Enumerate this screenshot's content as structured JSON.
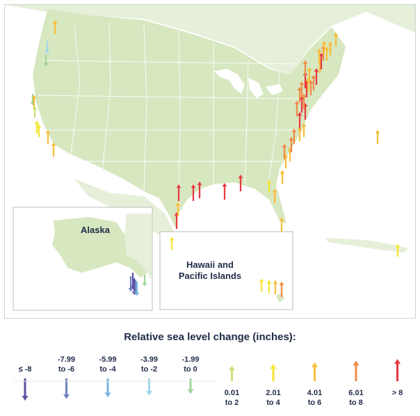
{
  "colors": {
    "land": "#d7e7c0",
    "land_light": "#e6efd9",
    "water": "#ffffff",
    "border": "#ffffff",
    "inset_border": "#b9bfbb",
    "text": "#1e2a46"
  },
  "map": {
    "insets": {
      "alaska_label": "Alaska",
      "hawaii_label_line1": "Hawaii and",
      "hawaii_label_line2": "Pacific Islands"
    }
  },
  "categories": [
    {
      "id": "c1",
      "line1": "≤ -8",
      "line2": "",
      "color": "#5b4fa3",
      "dir": "down",
      "size": 1.0
    },
    {
      "id": "c2",
      "line1": "-7.99",
      "line2": "to -6",
      "color": "#6f84bf",
      "dir": "down",
      "size": 0.85
    },
    {
      "id": "c3",
      "line1": "-5.99",
      "line2": "to -4",
      "color": "#78b6df",
      "dir": "down",
      "size": 0.7
    },
    {
      "id": "c4",
      "line1": "-3.99",
      "line2": "to -2",
      "color": "#9fd9ea",
      "dir": "down",
      "size": 0.55
    },
    {
      "id": "c5",
      "line1": "-1.99",
      "line2": "to 0",
      "color": "#9fd49a",
      "dir": "down",
      "size": 0.4
    },
    {
      "id": "c6",
      "line1": "0.01",
      "line2": "to 2",
      "color": "#cde07c",
      "dir": "up",
      "size": 0.4
    },
    {
      "id": "c7",
      "line1": "2.01",
      "line2": "to 4",
      "color": "#f6e533",
      "dir": "up",
      "size": 0.55
    },
    {
      "id": "c8",
      "line1": "4.01",
      "line2": "to 6",
      "color": "#f8be3a",
      "dir": "up",
      "size": 0.7
    },
    {
      "id": "c9",
      "line1": "6.01",
      "line2": "to 8",
      "color": "#f08a47",
      "dir": "up",
      "size": 0.85
    },
    {
      "id": "c10",
      "line1": "> 8",
      "line2": "",
      "color": "#e5383f",
      "dir": "up",
      "size": 1.0
    }
  ],
  "legend": {
    "title": "Relative sea level change (inches):"
  },
  "stations": [
    {
      "region": "Pacific Northwest",
      "cat": "c4"
    },
    {
      "region": "Pacific Northwest",
      "cat": "c8"
    },
    {
      "region": "Pacific Northwest",
      "cat": "c5"
    },
    {
      "region": "California",
      "cat": "c5"
    },
    {
      "region": "California",
      "cat": "c8"
    },
    {
      "region": "California",
      "cat": "c6"
    },
    {
      "region": "California",
      "cat": "c7"
    },
    {
      "region": "California",
      "cat": "c8"
    },
    {
      "region": "California",
      "cat": "c8"
    },
    {
      "region": "California",
      "cat": "c7"
    },
    {
      "region": "Gulf Coast",
      "cat": "c10"
    },
    {
      "region": "Gulf Coast",
      "cat": "c10"
    },
    {
      "region": "Gulf Coast",
      "cat": "c10"
    },
    {
      "region": "Gulf Coast",
      "cat": "c10"
    },
    {
      "region": "Gulf Coast",
      "cat": "c10"
    },
    {
      "region": "Gulf Coast",
      "cat": "c10"
    },
    {
      "region": "Gulf Coast",
      "cat": "c8"
    },
    {
      "region": "Florida",
      "cat": "c8"
    },
    {
      "region": "Florida",
      "cat": "c7"
    },
    {
      "region": "Florida",
      "cat": "c8"
    },
    {
      "region": "Florida",
      "cat": "c8"
    },
    {
      "region": "Southeast Atlantic",
      "cat": "c8"
    },
    {
      "region": "Southeast Atlantic",
      "cat": "c8"
    },
    {
      "region": "Southeast Atlantic",
      "cat": "c9"
    },
    {
      "region": "Southeast Atlantic",
      "cat": "c9"
    },
    {
      "region": "Southeast Atlantic",
      "cat": "c9"
    },
    {
      "region": "Southeast Atlantic",
      "cat": "c8"
    },
    {
      "region": "Southeast Atlantic",
      "cat": "c8"
    },
    {
      "region": "Mid-Atlantic",
      "cat": "c10"
    },
    {
      "region": "Mid-Atlantic",
      "cat": "c10"
    },
    {
      "region": "Mid-Atlantic",
      "cat": "c10"
    },
    {
      "region": "Mid-Atlantic",
      "cat": "c9"
    },
    {
      "region": "Mid-Atlantic",
      "cat": "c9"
    },
    {
      "region": "Mid-Atlantic",
      "cat": "c9"
    },
    {
      "region": "Mid-Atlantic",
      "cat": "c10"
    },
    {
      "region": "Mid-Atlantic",
      "cat": "c9"
    },
    {
      "region": "Mid-Atlantic",
      "cat": "c9"
    },
    {
      "region": "Mid-Atlantic",
      "cat": "c8"
    },
    {
      "region": "Mid-Atlantic",
      "cat": "c10"
    },
    {
      "region": "Mid-Atlantic",
      "cat": "c9"
    },
    {
      "region": "Mid-Atlantic",
      "cat": "c8"
    },
    {
      "region": "Mid-Atlantic",
      "cat": "c10"
    },
    {
      "region": "Mid-Atlantic",
      "cat": "c9"
    },
    {
      "region": "Mid-Atlantic",
      "cat": "c8"
    },
    {
      "region": "Mid-Atlantic",
      "cat": "c10"
    },
    {
      "region": "Northeast",
      "cat": "c8"
    },
    {
      "region": "Northeast",
      "cat": "c9"
    },
    {
      "region": "Northeast",
      "cat": "c8"
    },
    {
      "region": "Northeast",
      "cat": "c8"
    },
    {
      "region": "Northeast",
      "cat": "c8"
    },
    {
      "region": "Northeast",
      "cat": "c8"
    },
    {
      "region": "Bermuda",
      "cat": "c8"
    },
    {
      "region": "Puerto Rico",
      "cat": "c7"
    },
    {
      "region": "Alaska",
      "cat": "c2"
    },
    {
      "region": "Alaska",
      "cat": "c1"
    },
    {
      "region": "Alaska",
      "cat": "c1"
    },
    {
      "region": "Alaska",
      "cat": "c2"
    },
    {
      "region": "Alaska",
      "cat": "c3"
    },
    {
      "region": "Alaska",
      "cat": "c5"
    },
    {
      "region": "Pacific Islands",
      "cat": "c7"
    },
    {
      "region": "Hawaii",
      "cat": "c7"
    },
    {
      "region": "Hawaii",
      "cat": "c7"
    },
    {
      "region": "Hawaii",
      "cat": "c8"
    },
    {
      "region": "Hawaii",
      "cat": "c9"
    }
  ]
}
